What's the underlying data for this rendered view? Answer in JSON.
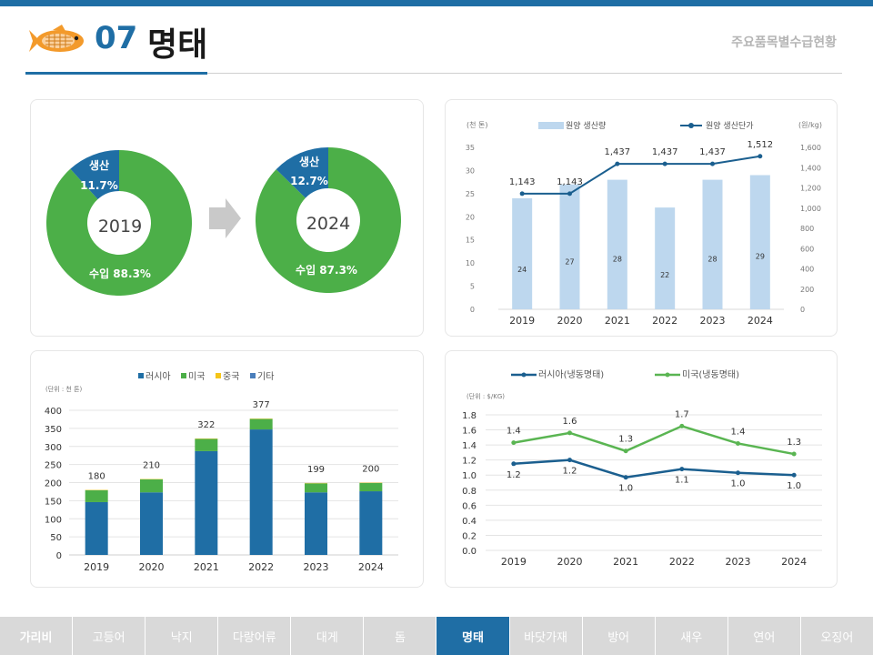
{
  "header": {
    "number": "07",
    "title": "명태",
    "subtitle": "주요품목별수급현황"
  },
  "colors": {
    "accent": "#1f6ea5",
    "green": "#4caf48",
    "light_blue": "#bdd7ee",
    "dark_blue": "#1f6ea5",
    "teal_line": "#1b5f8f",
    "nav_grey": "#d9d9d9"
  },
  "donuts": {
    "left": {
      "year": "2019",
      "prod_label": "생산",
      "prod_pct": "11.7%",
      "import_label": "수입 88.3%",
      "prod_value": 11.7
    },
    "right": {
      "year": "2024",
      "prod_label": "생산",
      "prod_pct": "12.7%",
      "import_label": "수입 87.3%",
      "prod_value": 12.7
    }
  },
  "nav": {
    "items": [
      "가리비",
      "고등어",
      "낙지",
      "다랑어류",
      "대게",
      "돔",
      "명태",
      "바닷가재",
      "방어",
      "새우",
      "연어",
      "오징어"
    ],
    "active": "명태"
  },
  "chart_data": [
    {
      "type": "bar",
      "subtype": "bar+line dual axis",
      "categories": [
        "2019",
        "2020",
        "2021",
        "2022",
        "2023",
        "2024"
      ],
      "series": [
        {
          "name": "원양 생산량",
          "type": "bar",
          "axis": "left",
          "values": [
            24,
            27,
            28,
            22,
            28,
            29
          ]
        },
        {
          "name": "원양 생산단가",
          "type": "line",
          "axis": "right",
          "values": [
            1143,
            1143,
            1437,
            1437,
            1437,
            1512
          ],
          "labels": [
            "1,143",
            "1,143",
            "1,437",
            "1,437",
            "1,437",
            "1,512"
          ]
        }
      ],
      "y_left_unit": "(천 톤)",
      "y_right_unit": "(원/kg)",
      "y_left_ticks": [
        "0",
        "5",
        "10",
        "15",
        "20",
        "25",
        "30",
        "35"
      ],
      "y_right_ticks": [
        "0",
        "200",
        "400",
        "600",
        "800",
        "1,000",
        "1,200",
        "1,400",
        "1,600"
      ],
      "ylim_left": [
        0,
        35
      ],
      "ylim_right": [
        0,
        1600
      ],
      "legend": "top"
    },
    {
      "type": "bar",
      "subtype": "stacked",
      "unit": "(단위 : 천 톤)",
      "categories": [
        "2019",
        "2020",
        "2021",
        "2022",
        "2023",
        "2024"
      ],
      "series": [
        {
          "name": "러시아",
          "values": [
            146,
            173,
            287,
            347,
            173,
            176
          ]
        },
        {
          "name": "미국",
          "values": [
            33,
            36,
            34,
            29,
            25,
            23
          ]
        },
        {
          "name": "중국",
          "values": [
            1,
            1,
            1,
            1,
            1,
            1
          ]
        },
        {
          "name": "기타",
          "values": [
            0,
            0,
            0,
            0,
            0,
            0
          ]
        }
      ],
      "totals": [
        "180",
        "210",
        "322",
        "377",
        "199",
        "200"
      ],
      "total_values": [
        180,
        210,
        322,
        377,
        199,
        200
      ],
      "y_ticks": [
        "0",
        "50",
        "100",
        "150",
        "200",
        "250",
        "300",
        "350",
        "400"
      ],
      "ylim": [
        0,
        400
      ],
      "legend": "top"
    },
    {
      "type": "line",
      "unit": "(단위 : $/KG)",
      "categories": [
        "2019",
        "2020",
        "2021",
        "2022",
        "2023",
        "2024"
      ],
      "series": [
        {
          "name": "러시아(냉동명태)",
          "values": [
            1.15,
            1.2,
            0.97,
            1.08,
            1.03,
            1.0
          ],
          "labels": [
            "1.2",
            "1.2",
            "1.0",
            "1.1",
            "1.0",
            "1.0"
          ]
        },
        {
          "name": "미국(냉동명태)",
          "values": [
            1.43,
            1.56,
            1.32,
            1.65,
            1.42,
            1.28
          ],
          "labels": [
            "1.4",
            "1.6",
            "1.3",
            "1.7",
            "1.4",
            "1.3"
          ]
        }
      ],
      "y_ticks": [
        "0.0",
        "0.2",
        "0.4",
        "0.6",
        "0.8",
        "1.0",
        "1.2",
        "1.4",
        "1.6",
        "1.8"
      ],
      "ylim": [
        0,
        1.8
      ],
      "legend": "top"
    }
  ]
}
